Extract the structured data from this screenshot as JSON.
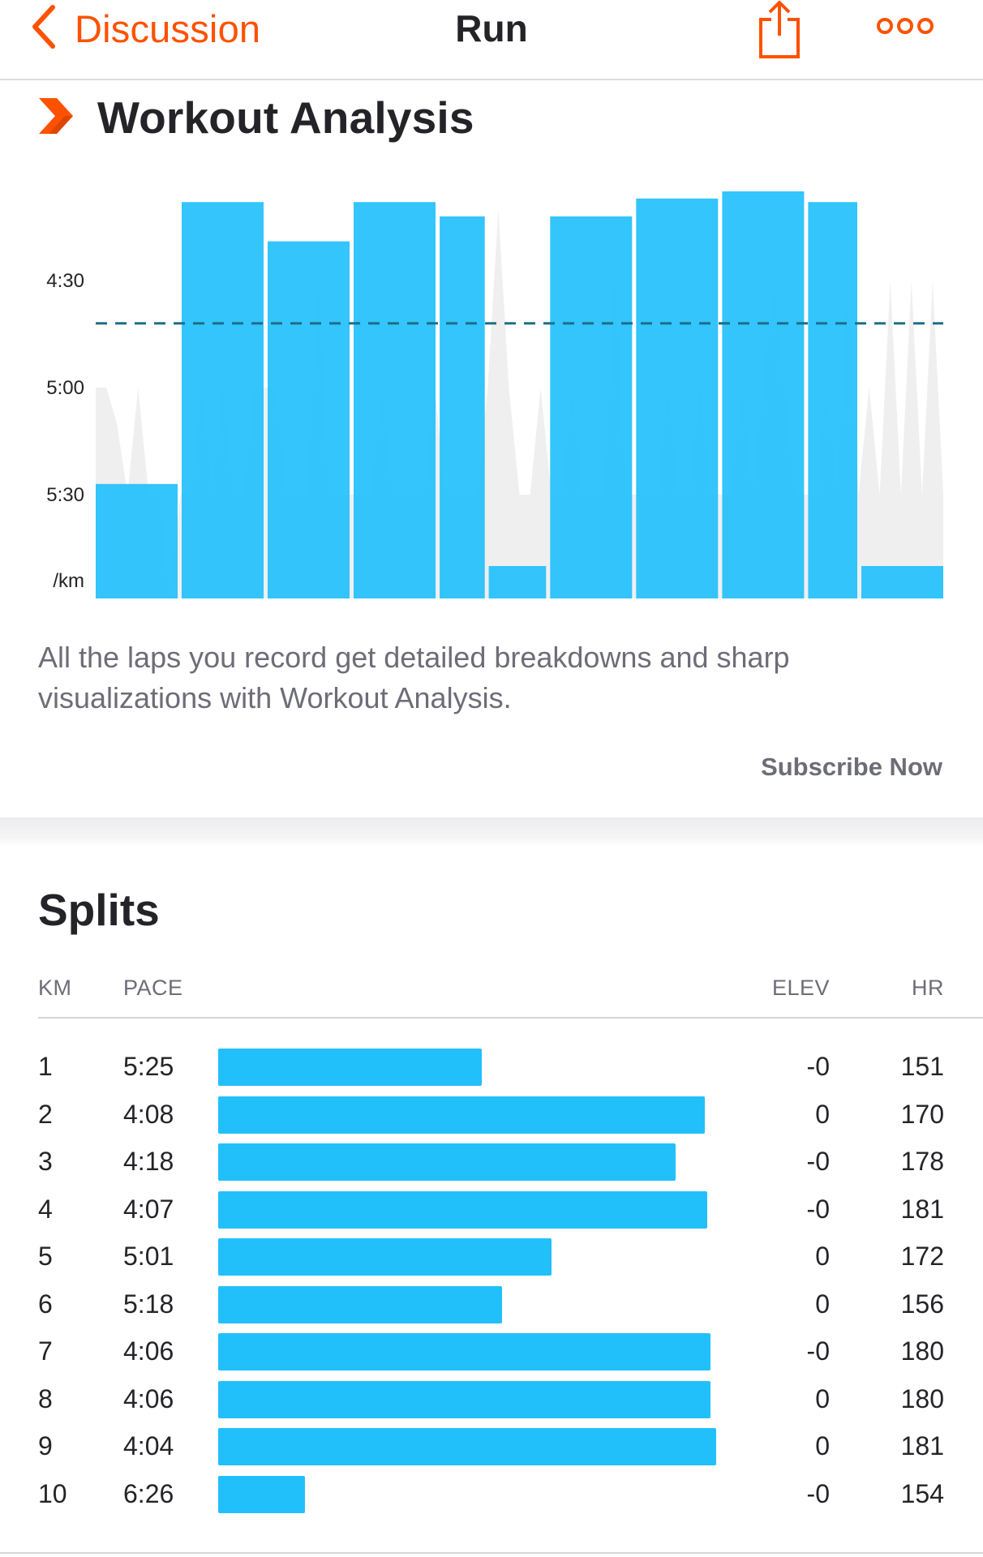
{
  "nav": {
    "back_icon": "chevron-left-icon",
    "back_label": "Discussion",
    "title": "Run",
    "share_icon": "share-icon",
    "more_icon": "more-dots-icon"
  },
  "colors": {
    "accent": "#fc5200",
    "bar": "#22c0fb",
    "bar_shadow": "#29b4eb",
    "hr_area": "#efeff0",
    "avg_line": "#1f6e88",
    "text_primary": "#242428",
    "text_secondary": "#6d6d78"
  },
  "workout_analysis": {
    "icon": "strava-chevron-icon",
    "title": "Workout Analysis",
    "description": "All the laps you record get detailed breakdowns and sharp visualizations with Workout Analysis.",
    "subscribe_label": "Subscribe Now"
  },
  "chart_data": {
    "type": "bar",
    "title": "",
    "ylabel": "/km",
    "y_tick_labels": [
      "4:30",
      "5:00",
      "5:30"
    ],
    "y_ticks_seconds": [
      270,
      300,
      330
    ],
    "y_axis_inverted": true,
    "y_bottom_seconds": 361,
    "average_pace_seconds": 282,
    "laps": [
      {
        "pace_seconds": 327,
        "distance": 1.0
      },
      {
        "pace_seconds": 248,
        "distance": 1.0
      },
      {
        "pace_seconds": 259,
        "distance": 1.0
      },
      {
        "pace_seconds": 248,
        "distance": 1.0
      },
      {
        "pace_seconds": 252,
        "distance": 0.55
      },
      {
        "pace_seconds": 350,
        "distance": 0.7
      },
      {
        "pace_seconds": 252,
        "distance": 1.0
      },
      {
        "pace_seconds": 247,
        "distance": 1.0
      },
      {
        "pace_seconds": 245,
        "distance": 1.0
      },
      {
        "pace_seconds": 248,
        "distance": 0.6
      },
      {
        "pace_seconds": 350,
        "distance": 1.0
      }
    ],
    "background_pace_profile": [
      300,
      300,
      310,
      330,
      300,
      330,
      330,
      360,
      330,
      330,
      300,
      330,
      300,
      330,
      330,
      300,
      300,
      300,
      330,
      330,
      330,
      270,
      330,
      330,
      330,
      330,
      330,
      300,
      330,
      330,
      330,
      330,
      300,
      330,
      330,
      330,
      330,
      300,
      250,
      300,
      330,
      330,
      300,
      330,
      330,
      300,
      330,
      330,
      330,
      270,
      330,
      330,
      330,
      330,
      300,
      330,
      330,
      300,
      330,
      330,
      330,
      300,
      330,
      300,
      270,
      300,
      330,
      330,
      330,
      300,
      330,
      270,
      330,
      300,
      330,
      270,
      330,
      270,
      330,
      270,
      330
    ]
  },
  "splits": {
    "title": "Splits",
    "headers": {
      "km": "KM",
      "pace": "PACE",
      "elev": "ELEV",
      "hr": "HR"
    },
    "rows": [
      {
        "km": "1",
        "pace": "5:25",
        "elev": "-0",
        "hr": "151",
        "pace_seconds": 325
      },
      {
        "km": "2",
        "pace": "4:08",
        "elev": "0",
        "hr": "170",
        "pace_seconds": 248
      },
      {
        "km": "3",
        "pace": "4:18",
        "elev": "-0",
        "hr": "178",
        "pace_seconds": 258
      },
      {
        "km": "4",
        "pace": "4:07",
        "elev": "-0",
        "hr": "181",
        "pace_seconds": 247
      },
      {
        "km": "5",
        "pace": "5:01",
        "elev": "0",
        "hr": "172",
        "pace_seconds": 301
      },
      {
        "km": "6",
        "pace": "5:18",
        "elev": "0",
        "hr": "156",
        "pace_seconds": 318
      },
      {
        "km": "7",
        "pace": "4:06",
        "elev": "-0",
        "hr": "180",
        "pace_seconds": 246
      },
      {
        "km": "8",
        "pace": "4:06",
        "elev": "0",
        "hr": "180",
        "pace_seconds": 246
      },
      {
        "km": "9",
        "pace": "4:04",
        "elev": "0",
        "hr": "181",
        "pace_seconds": 244
      },
      {
        "km": "10",
        "pace": "6:26",
        "elev": "-0",
        "hr": "154",
        "pace_seconds": 386
      }
    ]
  }
}
